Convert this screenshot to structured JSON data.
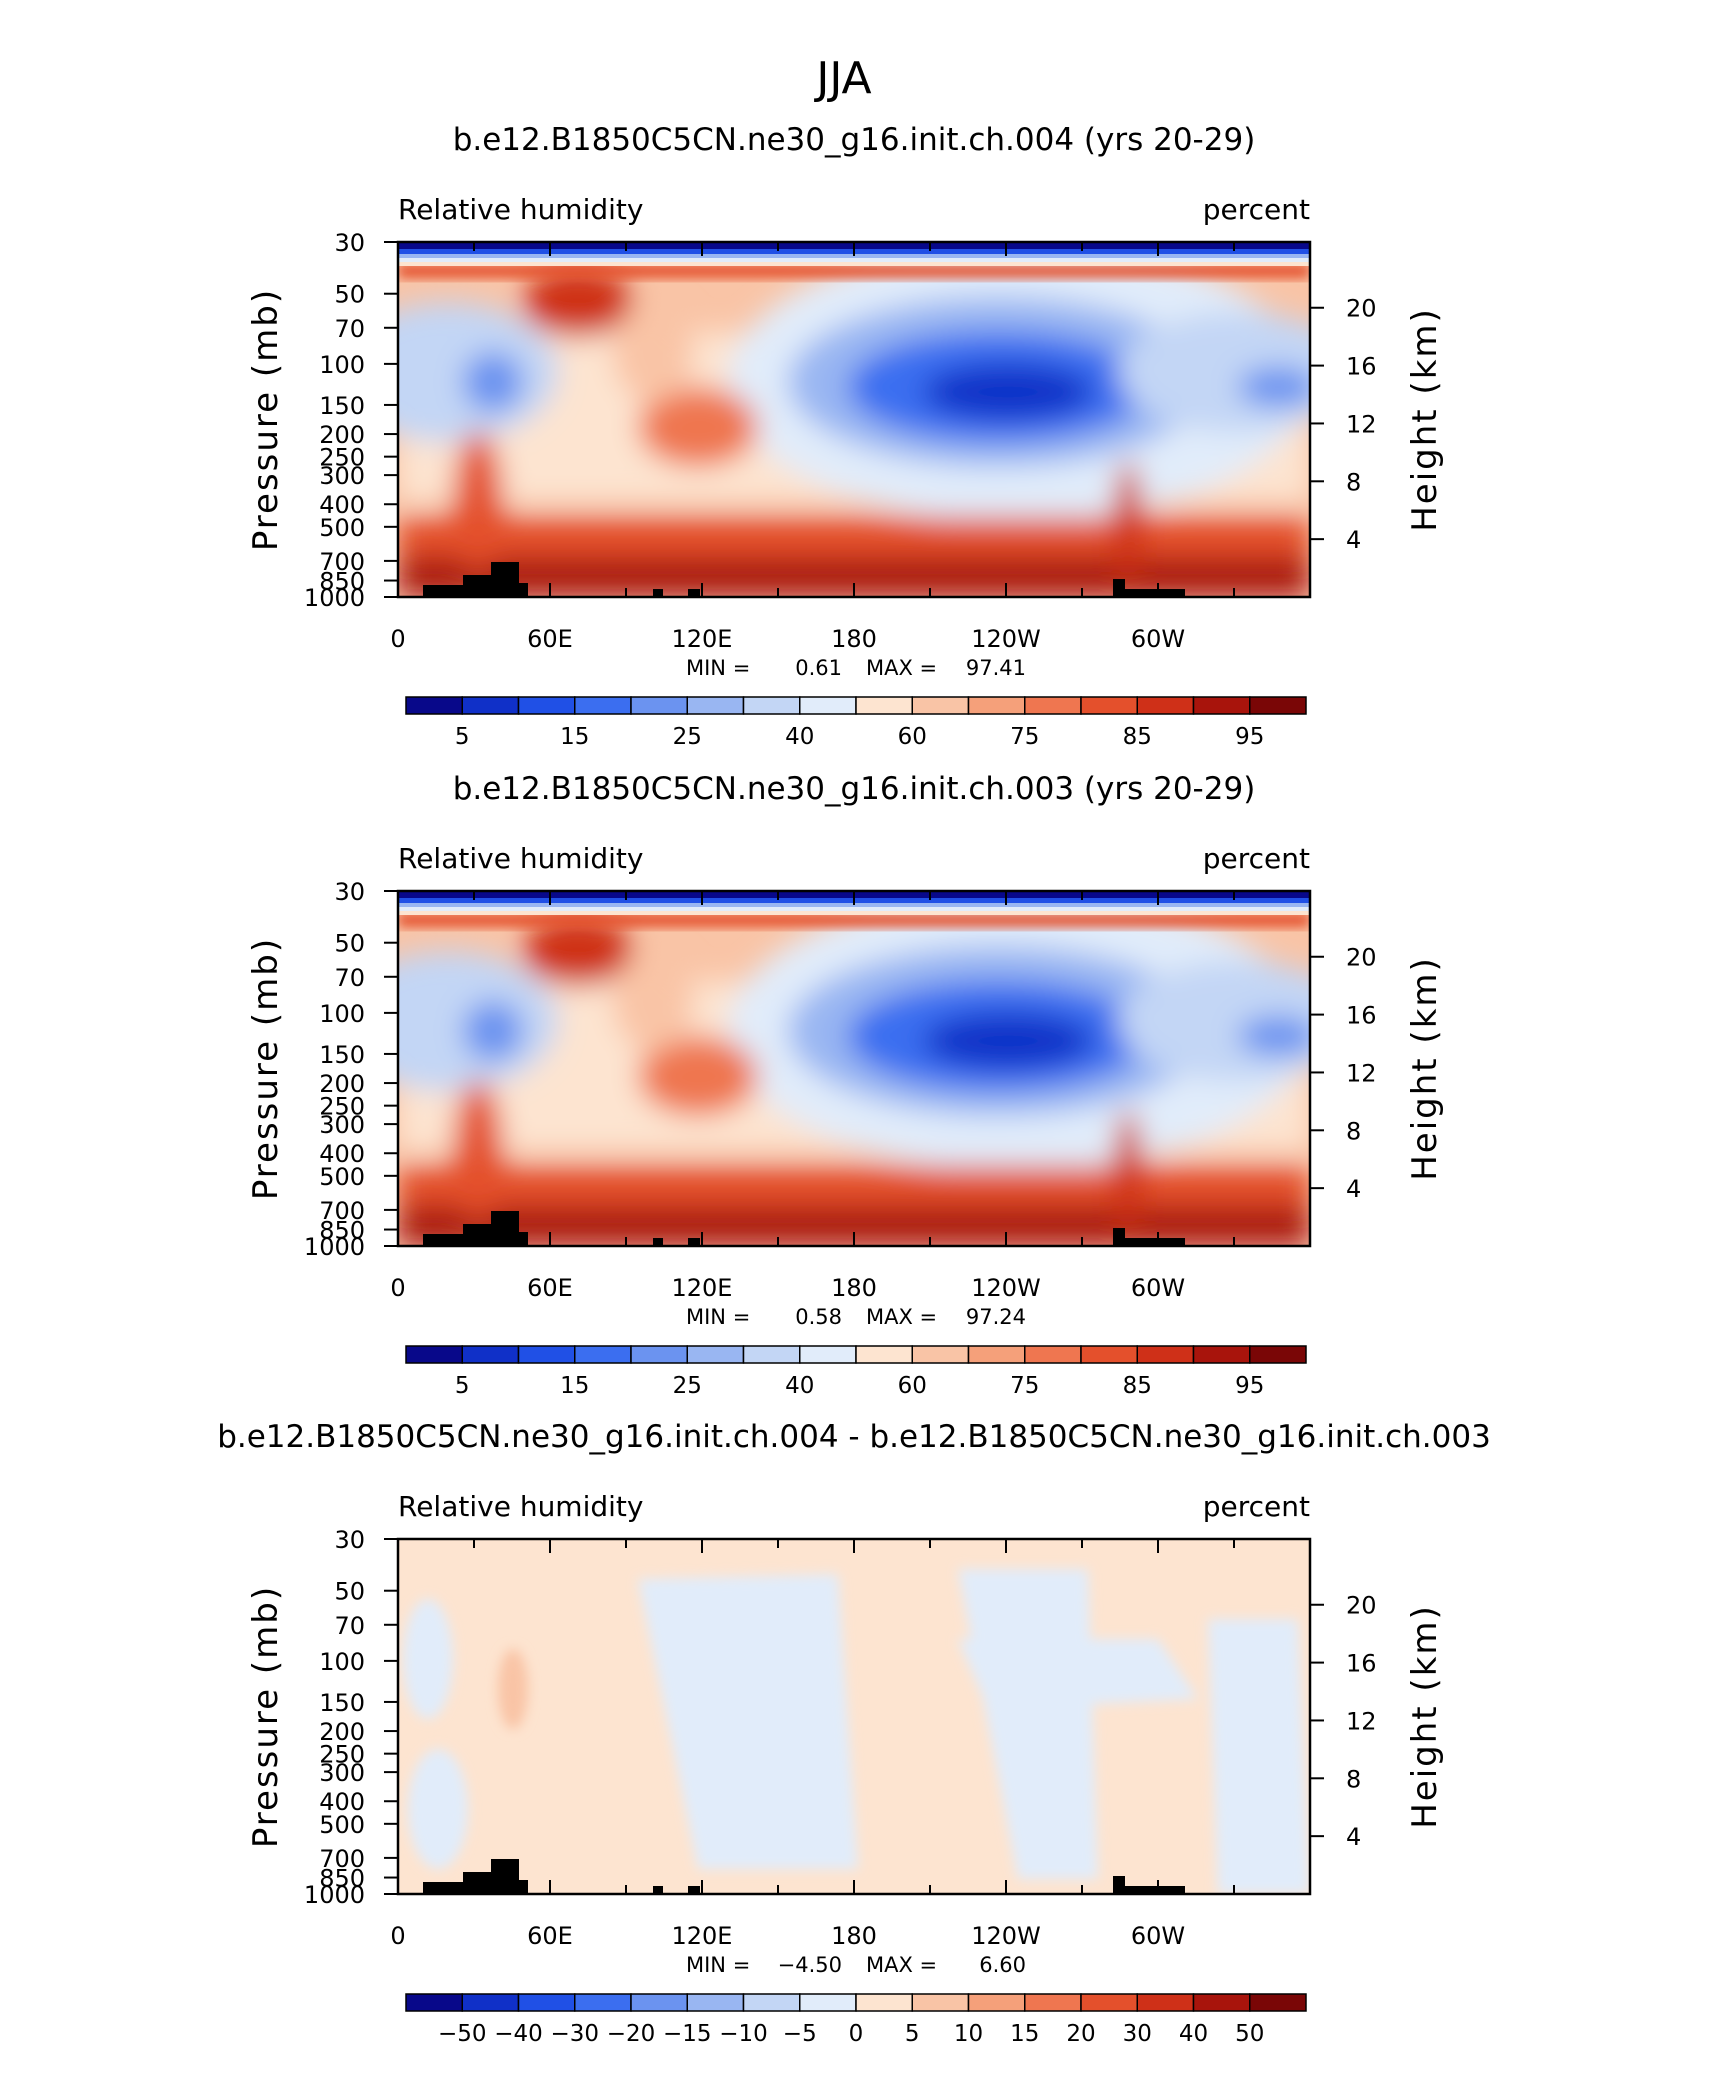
{
  "title": "JJA",
  "chart_data": [
    {
      "type": "heatmap",
      "title": "b.e12.B1850C5CN.ne30_g16.init.ch.004 (yrs 20-29)",
      "left_label": "Relative humidity",
      "right_label": "percent",
      "ylabel_left": "Pressure (mb)",
      "ylabel_right": "Height (km)",
      "xticks": [
        "0",
        "60E",
        "120E",
        "180",
        "120W",
        "60W"
      ],
      "yticks_pressure": [
        "30",
        "50",
        "70",
        "100",
        "150",
        "200",
        "250",
        "300",
        "400",
        "500",
        "700",
        "850",
        "1000"
      ],
      "yticks_height": [
        "20",
        "16",
        "12",
        "8",
        "4"
      ],
      "min_label": "MIN =",
      "min_value": "0.61",
      "max_label": "MAX =",
      "max_value": "97.41",
      "colorbar_labels": [
        "5",
        "15",
        "25",
        "40",
        "60",
        "75",
        "85",
        "95"
      ],
      "colorbar_colors": [
        "#08088a",
        "#1030c8",
        "#2050e6",
        "#3b6ef0",
        "#6b93f0",
        "#99b6f2",
        "#c3d6f5",
        "#e1ecfa",
        "#fde4d0",
        "#f9c4a6",
        "#f5a07a",
        "#ef7650",
        "#e4502c",
        "#cf3018",
        "#a8140c",
        "#7a0606"
      ],
      "ylim": [
        1000,
        30
      ]
    },
    {
      "type": "heatmap",
      "title": "b.e12.B1850C5CN.ne30_g16.init.ch.003 (yrs 20-29)",
      "left_label": "Relative humidity",
      "right_label": "percent",
      "ylabel_left": "Pressure (mb)",
      "ylabel_right": "Height (km)",
      "xticks": [
        "0",
        "60E",
        "120E",
        "180",
        "120W",
        "60W"
      ],
      "yticks_pressure": [
        "30",
        "50",
        "70",
        "100",
        "150",
        "200",
        "250",
        "300",
        "400",
        "500",
        "700",
        "850",
        "1000"
      ],
      "yticks_height": [
        "20",
        "16",
        "12",
        "8",
        "4"
      ],
      "min_label": "MIN =",
      "min_value": "0.58",
      "max_label": "MAX =",
      "max_value": "97.24",
      "colorbar_labels": [
        "5",
        "15",
        "25",
        "40",
        "60",
        "75",
        "85",
        "95"
      ],
      "colorbar_colors": [
        "#08088a",
        "#1030c8",
        "#2050e6",
        "#3b6ef0",
        "#6b93f0",
        "#99b6f2",
        "#c3d6f5",
        "#e1ecfa",
        "#fde4d0",
        "#f9c4a6",
        "#f5a07a",
        "#ef7650",
        "#e4502c",
        "#cf3018",
        "#a8140c",
        "#7a0606"
      ],
      "ylim": [
        1000,
        30
      ]
    },
    {
      "type": "heatmap",
      "title": "b.e12.B1850C5CN.ne30_g16.init.ch.004 - b.e12.B1850C5CN.ne30_g16.init.ch.003",
      "left_label": "Relative humidity",
      "right_label": "percent",
      "ylabel_left": "Pressure (mb)",
      "ylabel_right": "Height (km)",
      "xticks": [
        "0",
        "60E",
        "120E",
        "180",
        "120W",
        "60W"
      ],
      "yticks_pressure": [
        "30",
        "50",
        "70",
        "100",
        "150",
        "200",
        "250",
        "300",
        "400",
        "500",
        "700",
        "850",
        "1000"
      ],
      "yticks_height": [
        "20",
        "16",
        "12",
        "8",
        "4"
      ],
      "min_label": "MIN =",
      "min_value": "−4.50",
      "max_label": "MAX =",
      "max_value": "6.60",
      "colorbar_labels": [
        "−50",
        "−40",
        "−30",
        "−20",
        "−15",
        "−10",
        "−5",
        "0",
        "5",
        "10",
        "15",
        "20",
        "30",
        "40",
        "50"
      ],
      "colorbar_colors": [
        "#08088a",
        "#1030c8",
        "#2050e6",
        "#3b6ef0",
        "#6b93f0",
        "#99b6f2",
        "#c3d6f5",
        "#e1ecfa",
        "#fde4d0",
        "#f9c4a6",
        "#f5a07a",
        "#ef7650",
        "#e4502c",
        "#cf3018",
        "#a8140c",
        "#7a0606"
      ],
      "ylim": [
        1000,
        30
      ]
    }
  ]
}
